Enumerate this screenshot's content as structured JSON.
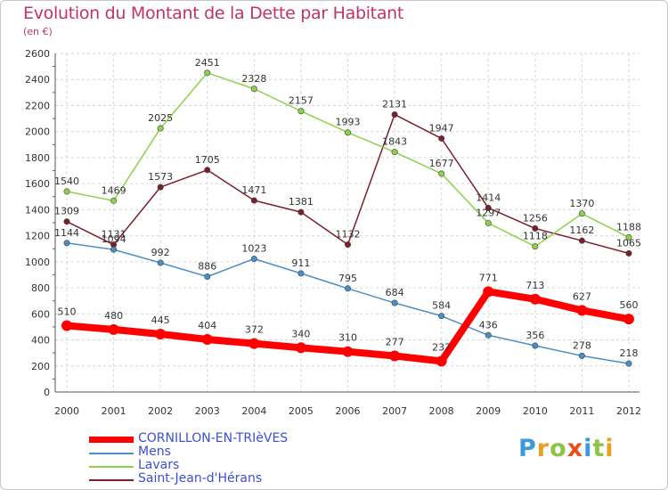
{
  "header": {
    "title": "Evolution du Montant de la Dette par Habitant",
    "subtitle": "(en €)"
  },
  "logo": {
    "text": "Proxiti",
    "colors": [
      "#3b9ad9",
      "#e8a020",
      "#8cc63f",
      "#e84e1b",
      "#3b9ad9",
      "#8cc63f",
      "#e8a020"
    ]
  },
  "chart_data": {
    "type": "line",
    "title": "Evolution du Montant de la Dette par Habitant",
    "subtitle": "(en €)",
    "categories": [
      "2000",
      "2001",
      "2002",
      "2003",
      "2004",
      "2005",
      "2006",
      "2007",
      "2008",
      "2009",
      "2010",
      "2011",
      "2012"
    ],
    "ylim": [
      0,
      2600
    ],
    "yticks": [
      0,
      200,
      400,
      600,
      800,
      1000,
      1200,
      1400,
      1600,
      1800,
      2000,
      2200,
      2400,
      2600
    ],
    "grid": true,
    "legend_position": "bottom-left",
    "series": [
      {
        "name": "Saint-Jean-d'Hérans",
        "color": "#7a1f2b",
        "values": [
          1309,
          1131,
          1573,
          1705,
          1471,
          1381,
          1132,
          2131,
          1947,
          1414,
          1256,
          1162,
          1065
        ]
      },
      {
        "name": "Lavars",
        "color": "#8cd24a",
        "values": [
          1540,
          1469,
          2025,
          2451,
          2328,
          2157,
          1993,
          1843,
          1677,
          1297,
          1118,
          1370,
          1188
        ]
      },
      {
        "name": "Mens",
        "color": "#4a90c8",
        "values": [
          1144,
          1094,
          992,
          886,
          1023,
          911,
          795,
          684,
          584,
          436,
          356,
          278,
          218
        ]
      },
      {
        "name": "CORNILLON-EN-TRIèVES",
        "color": "#ff0000",
        "values": [
          510,
          480,
          445,
          404,
          372,
          340,
          310,
          277,
          237,
          771,
          713,
          627,
          560
        ]
      }
    ],
    "legend": [
      "CORNILLON-EN-TRIèVES",
      "Mens",
      "Lavars",
      "Saint-Jean-d'Hérans"
    ]
  }
}
